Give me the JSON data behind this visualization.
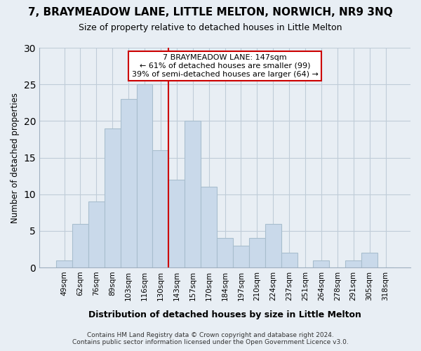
{
  "title": "7, BRAYMEADOW LANE, LITTLE MELTON, NORWICH, NR9 3NQ",
  "subtitle": "Size of property relative to detached houses in Little Melton",
  "xlabel": "Distribution of detached houses by size in Little Melton",
  "ylabel": "Number of detached properties",
  "bar_labels": [
    "49sqm",
    "62sqm",
    "76sqm",
    "89sqm",
    "103sqm",
    "116sqm",
    "130sqm",
    "143sqm",
    "157sqm",
    "170sqm",
    "184sqm",
    "197sqm",
    "210sqm",
    "224sqm",
    "237sqm",
    "251sqm",
    "264sqm",
    "278sqm",
    "291sqm",
    "305sqm",
    "318sqm"
  ],
  "bar_values": [
    1,
    6,
    9,
    19,
    23,
    25,
    16,
    12,
    20,
    11,
    4,
    3,
    4,
    6,
    2,
    0,
    1,
    0,
    1,
    2,
    0
  ],
  "bar_color": "#c9d9ea",
  "bar_edge_color": "#a8bece",
  "vline_x": 7,
  "vline_color": "#cc0000",
  "annotation_title": "7 BRAYMEADOW LANE: 147sqm",
  "annotation_line1": "← 61% of detached houses are smaller (99)",
  "annotation_line2": "39% of semi-detached houses are larger (64) →",
  "annotation_box_facecolor": "#ffffff",
  "annotation_box_edgecolor": "#cc0000",
  "ylim": [
    0,
    30
  ],
  "yticks": [
    0,
    5,
    10,
    15,
    20,
    25,
    30
  ],
  "footer_line1": "Contains HM Land Registry data © Crown copyright and database right 2024.",
  "footer_line2": "Contains public sector information licensed under the Open Government Licence v3.0.",
  "background_color": "#e8eef4",
  "plot_background_color": "#e8eef4",
  "grid_color": "#c0ccd8",
  "title_fontsize": 11,
  "subtitle_fontsize": 9
}
